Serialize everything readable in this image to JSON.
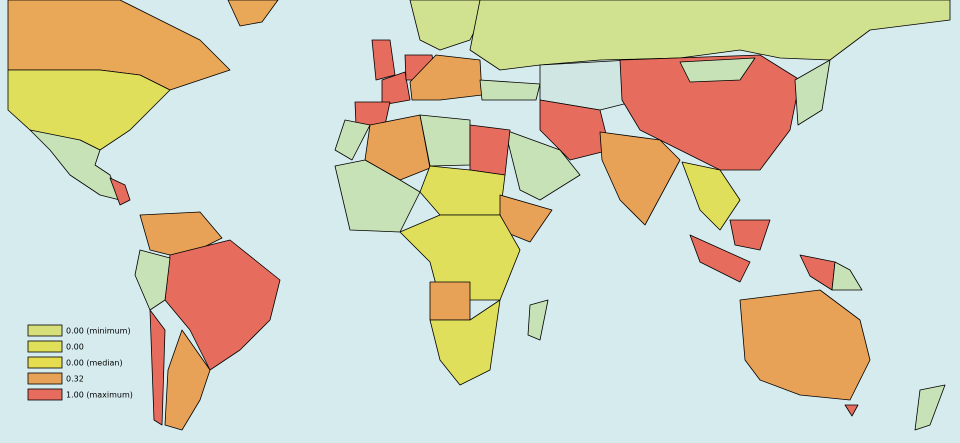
{
  "legend": {
    "items": [
      {
        "label": "0.00 (minimum)",
        "color": "#d6df7a"
      },
      {
        "label": "0.00",
        "color": "#e0df5c"
      },
      {
        "label": "0.00 (median)",
        "color": "#e6dc50"
      },
      {
        "label": "0.32",
        "color": "#e8a258"
      },
      {
        "label": "1.00 (maximum)",
        "color": "#e66c5e"
      }
    ]
  }
}
